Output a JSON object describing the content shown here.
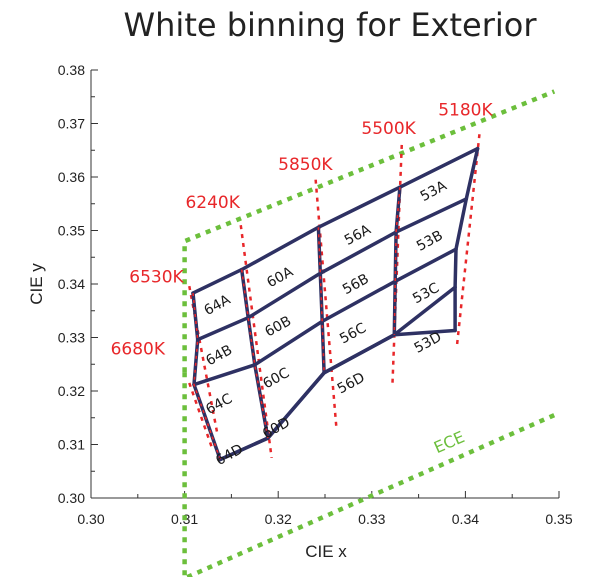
{
  "chart_data": {
    "type": "scatter",
    "title": "White binning for Exterior",
    "xlabel": "CIE x",
    "ylabel": "CIE y",
    "xlim": [
      0.3,
      0.35
    ],
    "ylim": [
      0.3,
      0.38
    ],
    "x_ticks": [
      "0.30",
      "0.31",
      "0.32",
      "0.33",
      "0.34",
      "0.35"
    ],
    "y_ticks": [
      "0.30",
      "0.31",
      "0.32",
      "0.33",
      "0.34",
      "0.35",
      "0.36",
      "0.37",
      "0.38"
    ],
    "grid": false,
    "colors": {
      "grid_lines": "#2e3163",
      "cct_lines": "#e8272a",
      "ece": "#6cbf3c"
    },
    "cct_labels": [
      {
        "text": "5180K",
        "x": 0.34,
        "y": 0.3715
      },
      {
        "text": "5500K",
        "x": 0.3318,
        "y": 0.368
      },
      {
        "text": "5850K",
        "x": 0.3229,
        "y": 0.3613
      },
      {
        "text": "6240K",
        "x": 0.313,
        "y": 0.3542
      },
      {
        "text": "6530K",
        "x": 0.307,
        "y": 0.3403
      },
      {
        "text": "6680K",
        "x": 0.305,
        "y": 0.3268
      }
    ],
    "cct_lines": [
      {
        "name": "5180K",
        "points": [
          [
            0.3415,
            0.368
          ],
          [
            0.3391,
            0.3285
          ]
        ]
      },
      {
        "name": "5500K",
        "points": [
          [
            0.3332,
            0.366
          ],
          [
            0.3322,
            0.321
          ]
        ]
      },
      {
        "name": "5850K",
        "points": [
          [
            0.324,
            0.3595
          ],
          [
            0.3262,
            0.3135
          ]
        ]
      },
      {
        "name": "6240K",
        "points": [
          [
            0.316,
            0.351
          ],
          [
            0.3193,
            0.3075
          ]
        ]
      },
      {
        "name": "6530K",
        "points": [
          [
            0.3105,
            0.3396
          ],
          [
            0.3135,
            0.312
          ]
        ]
      },
      {
        "name": "6680K",
        "points": [
          [
            0.3105,
            0.3215
          ],
          [
            0.313,
            0.309
          ]
        ]
      }
    ],
    "bin_columns": [
      [
        [
          0.3109,
          0.3383
        ],
        [
          0.3114,
          0.3296
        ],
        [
          0.311,
          0.3212
        ],
        [
          0.3138,
          0.3072
        ]
      ],
      [
        [
          0.3161,
          0.3427
        ],
        [
          0.3168,
          0.3337
        ],
        [
          0.3175,
          0.3249
        ],
        [
          0.3189,
          0.3112
        ]
      ],
      [
        [
          0.3243,
          0.3506
        ],
        [
          0.3245,
          0.342
        ],
        [
          0.3247,
          0.333
        ],
        [
          0.3249,
          0.3234
        ]
      ],
      [
        [
          0.333,
          0.3581
        ],
        [
          0.3326,
          0.3497
        ],
        [
          0.3325,
          0.3405
        ],
        [
          0.3324,
          0.3305
        ]
      ],
      [
        [
          0.3413,
          0.3653
        ],
        [
          0.3401,
          0.3559
        ],
        [
          0.339,
          0.3465
        ],
        [
          0.3389,
          0.3394
        ],
        [
          0.3389,
          0.3313
        ]
      ]
    ],
    "bins": [
      {
        "label": "53A",
        "x": 0.3366,
        "y": 0.3573
      },
      {
        "label": "53B",
        "x": 0.3362,
        "y": 0.348
      },
      {
        "label": "53C",
        "x": 0.3358,
        "y": 0.3382
      },
      {
        "label": "53D",
        "x": 0.336,
        "y": 0.329
      },
      {
        "label": "56A",
        "x": 0.3285,
        "y": 0.3491
      },
      {
        "label": "56B",
        "x": 0.3283,
        "y": 0.3399
      },
      {
        "label": "56C",
        "x": 0.328,
        "y": 0.3307
      },
      {
        "label": "56D",
        "x": 0.3278,
        "y": 0.3214
      },
      {
        "label": "60A",
        "x": 0.3202,
        "y": 0.3412
      },
      {
        "label": "60B",
        "x": 0.32,
        "y": 0.332
      },
      {
        "label": "60C",
        "x": 0.3198,
        "y": 0.3223
      },
      {
        "label": "60D",
        "x": 0.3198,
        "y": 0.313
      },
      {
        "label": "64A",
        "x": 0.3135,
        "y": 0.336
      },
      {
        "label": "64B",
        "x": 0.3137,
        "y": 0.3266
      },
      {
        "label": "64C",
        "x": 0.3137,
        "y": 0.3175
      },
      {
        "label": "64D",
        "x": 0.3148,
        "y": 0.308
      }
    ],
    "ece": {
      "label": "ECE",
      "label_pos": {
        "x": 0.3385,
        "y": 0.3095
      },
      "boundary_upper": [
        [
          0.31,
          0.3235
        ],
        [
          0.31,
          0.348
        ],
        [
          0.3495,
          0.376
        ]
      ],
      "boundary_lower": [
        [
          0.31,
          0.3235
        ],
        [
          0.31,
          0.285
        ],
        [
          0.3495,
          0.3155
        ]
      ]
    }
  }
}
